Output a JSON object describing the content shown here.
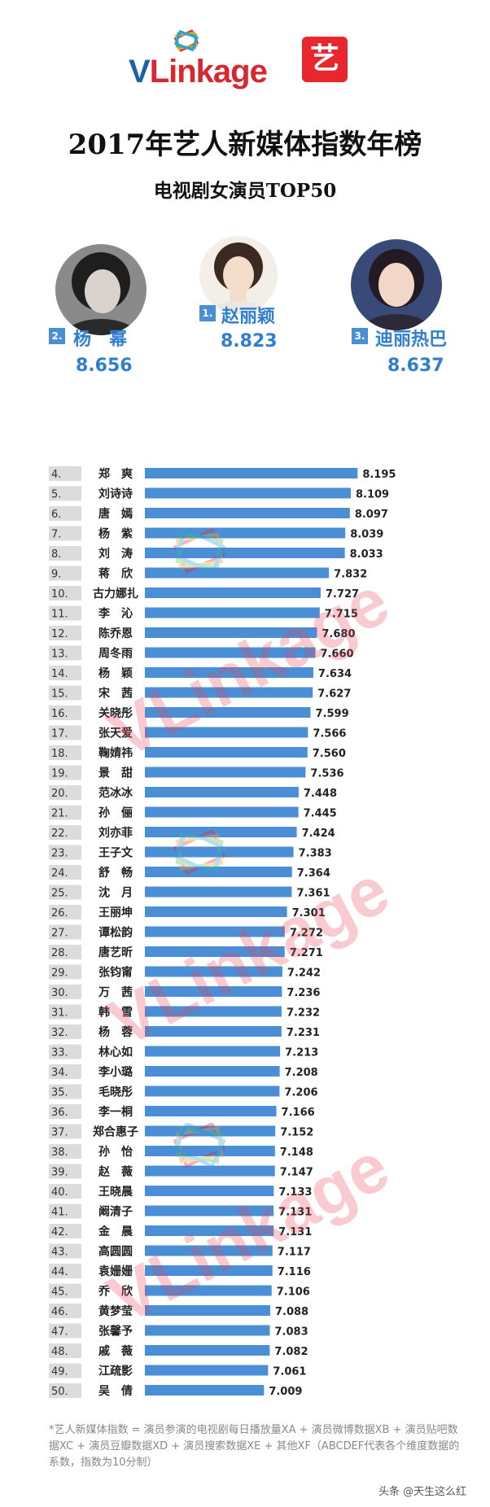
{
  "logo": {
    "text_v": "V",
    "text_rest": "Linkage",
    "badge": "艺"
  },
  "title": "2017年艺人新媒体指数年榜",
  "subtitle": "电视剧女演员TOP50",
  "top3": [
    {
      "rank": "1.",
      "name": "赵丽颖",
      "score": "8.823"
    },
    {
      "rank": "2.",
      "name": "杨　幂",
      "score": "8.656"
    },
    {
      "rank": "3.",
      "name": "迪丽热巴",
      "score": "8.637"
    }
  ],
  "watermark": "VLinkage",
  "footnote": "*艺人新媒体指数 = 演员参演的电视剧每日播放量XA + 演员微博数据XB + 演员贴吧数据XC + 演员豆瓣数据XD + 演员搜索数据XE + 其他XF（ABCDEF代表各个维度数据的系数，指数为10分制）",
  "source": "头条 @天生这么红",
  "colors": {
    "bar": "#4a8fd6",
    "rank_bg": "#dcdcdc",
    "accent": "#2f7fd0"
  },
  "chart_data": {
    "type": "bar",
    "orientation": "horizontal",
    "ranks": [
      "4.",
      "5.",
      "6.",
      "7.",
      "8.",
      "9.",
      "10.",
      "11.",
      "12.",
      "13.",
      "14.",
      "15.",
      "16.",
      "17.",
      "18.",
      "19.",
      "20.",
      "21.",
      "22.",
      "23.",
      "24.",
      "25.",
      "26.",
      "27.",
      "28.",
      "29.",
      "30.",
      "31.",
      "32.",
      "33.",
      "34.",
      "35.",
      "36.",
      "37.",
      "38.",
      "39.",
      "40.",
      "41.",
      "42.",
      "43.",
      "44.",
      "45.",
      "46.",
      "47.",
      "48.",
      "49.",
      "50."
    ],
    "categories": [
      "郑　爽",
      "刘诗诗",
      "唐　嫣",
      "杨　紫",
      "刘　涛",
      "蒋　欣",
      "古力娜扎",
      "李　沁",
      "陈乔恩",
      "周冬雨",
      "杨　颖",
      "宋　茜",
      "关晓彤",
      "张天爱",
      "鞠婧祎",
      "景　甜",
      "范冰冰",
      "孙　俪",
      "刘亦菲",
      "王子文",
      "舒　畅",
      "沈　月",
      "王丽坤",
      "谭松韵",
      "唐艺昕",
      "张钧甯",
      "万　茜",
      "韩　雪",
      "杨　蓉",
      "林心如",
      "李小璐",
      "毛晓彤",
      "李一桐",
      "郑合惠子",
      "孙　怡",
      "赵　薇",
      "王晓晨",
      "阚清子",
      "金　晨",
      "高圆圆",
      "袁姗姗",
      "乔　欣",
      "黄梦莹",
      "张馨予",
      "戚　薇",
      "江疏影",
      "吴　倩"
    ],
    "values": [
      8.195,
      8.109,
      8.097,
      8.039,
      8.033,
      7.832,
      7.727,
      7.715,
      7.68,
      7.66,
      7.634,
      7.627,
      7.599,
      7.566,
      7.56,
      7.536,
      7.448,
      7.445,
      7.424,
      7.383,
      7.364,
      7.361,
      7.301,
      7.272,
      7.271,
      7.242,
      7.236,
      7.232,
      7.231,
      7.213,
      7.208,
      7.206,
      7.166,
      7.152,
      7.148,
      7.147,
      7.133,
      7.131,
      7.131,
      7.117,
      7.116,
      7.106,
      7.088,
      7.083,
      7.082,
      7.061,
      7.009
    ],
    "labels": [
      "8.195",
      "8.109",
      "8.097",
      "8.039",
      "8.033",
      "7.832",
      "7.727",
      "7.715",
      "7.680",
      "7.660",
      "7.634",
      "7.627",
      "7.599",
      "7.566",
      "7.560",
      "7.536",
      "7.448",
      "7.445",
      "7.424",
      "7.383",
      "7.364",
      "7.361",
      "7.301",
      "7.272",
      "7.271",
      "7.242",
      "7.236",
      "7.232",
      "7.231",
      "7.213",
      "7.208",
      "7.206",
      "7.166",
      "7.152",
      "7.148",
      "7.147",
      "7.133",
      "7.131",
      "7.131",
      "7.117",
      "7.116",
      "7.106",
      "7.088",
      "7.083",
      "7.082",
      "7.061",
      "7.009"
    ],
    "xlim": [
      5.5,
      8.8
    ]
  }
}
